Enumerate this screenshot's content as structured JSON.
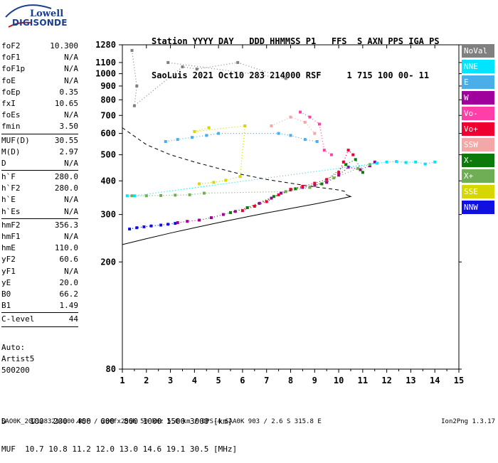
{
  "logo": {
    "line1": "Lowell",
    "line2": "DIGISONDE"
  },
  "header": {
    "labels": "Station YYYY DAY   DDD HHMMSS P1   FFS  S AXN PPS IGA PS",
    "values": "SaoLuis 2021 Oct10 283 214000 RSF     1 715 100 00- 11"
  },
  "params": {
    "group1": [
      {
        "name": "foF2",
        "value": "10.300"
      },
      {
        "name": "foF1",
        "value": "N/A"
      },
      {
        "name": "foF1p",
        "value": "N/A"
      },
      {
        "name": "foE",
        "value": "N/A"
      },
      {
        "name": "foEp",
        "value": "0.35"
      },
      {
        "name": "fxI",
        "value": "10.65"
      },
      {
        "name": "foEs",
        "value": "N/A"
      },
      {
        "name": "fmin",
        "value": "3.50"
      }
    ],
    "group2": [
      {
        "name": "MUF(D)",
        "value": "30.55"
      },
      {
        "name": "M(D)",
        "value": "2.97"
      },
      {
        "name": "D",
        "value": "N/A"
      }
    ],
    "group3": [
      {
        "name": "h`F",
        "value": "280.0"
      },
      {
        "name": "h`F2",
        "value": "280.0"
      },
      {
        "name": "h`E",
        "value": "N/A"
      },
      {
        "name": "h`Es",
        "value": "N/A"
      }
    ],
    "group4": [
      {
        "name": "hmF2",
        "value": "356.3"
      },
      {
        "name": "hmF1",
        "value": "N/A"
      },
      {
        "name": "hmE",
        "value": "110.0"
      },
      {
        "name": "yF2",
        "value": "60.6"
      },
      {
        "name": "yF1",
        "value": "N/A"
      },
      {
        "name": "yE",
        "value": "20.0"
      },
      {
        "name": "B0",
        "value": "66.2"
      },
      {
        "name": "B1",
        "value": "1.49"
      }
    ],
    "group5": [
      {
        "name": "C-level",
        "value": "44"
      }
    ]
  },
  "auto": {
    "line1": "Auto:",
    "line2": "Artist5",
    "line3": "500200"
  },
  "dtable": {
    "d_row": "D     100  200  400  600  800 1000 1500 3000 [km]",
    "muf_row": "MUF  10.7 10.8 11.2 12.0 13.0 14.6 19.1 30.5 [MHz]"
  },
  "footer": {
    "left": "SAO0K_2021283214000.RSF / 280fx256h 50 kHz 5.0 km / DPS-4 SAA0K 903 / 2.6 S 315.8 E",
    "right": "Ion2Png 1.3.17"
  },
  "legend": [
    {
      "label": "NoVal",
      "color": "#808080"
    },
    {
      "label": "NNE",
      "color": "#00e5ff"
    },
    {
      "label": "E",
      "color": "#4aaee8"
    },
    {
      "label": "W",
      "color": "#a0009c"
    },
    {
      "label": "Vo-",
      "color": "#ff3fa8"
    },
    {
      "label": "Vo+",
      "color": "#ee0030"
    },
    {
      "label": "SSW",
      "color": "#f4a7a7"
    },
    {
      "label": "X-",
      "color": "#0b7a0b"
    },
    {
      "label": "X+",
      "color": "#6fae55"
    },
    {
      "label": "SSE",
      "color": "#d6d600"
    },
    {
      "label": "NNW",
      "color": "#1010e0"
    }
  ],
  "chart_data": {
    "type": "scatter",
    "xlabel": "",
    "ylabel": "",
    "xlim": [
      1,
      15
    ],
    "ylim": [
      80,
      1280
    ],
    "x_ticks": [
      1,
      2,
      3,
      4,
      5,
      6,
      7,
      8,
      9,
      10,
      11,
      12,
      13,
      14,
      15
    ],
    "y_ticks": [
      80,
      200,
      300,
      400,
      500,
      600,
      700,
      800,
      900,
      1000,
      1100,
      1280
    ],
    "y_scale": "log",
    "series": [
      {
        "color": "#1010e0",
        "points": [
          [
            1.3,
            265
          ],
          [
            1.6,
            268
          ],
          [
            1.9,
            270
          ],
          [
            2.2,
            272
          ],
          [
            2.6,
            274
          ],
          [
            2.9,
            276
          ],
          [
            3.2,
            278
          ]
        ]
      },
      {
        "color": "#a0009c",
        "points": [
          [
            3.3,
            280
          ],
          [
            3.7,
            283
          ],
          [
            4.2,
            286
          ],
          [
            4.7,
            292
          ],
          [
            5.2,
            300
          ],
          [
            5.7,
            308
          ],
          [
            6.2,
            318
          ],
          [
            6.7,
            330
          ],
          [
            7.2,
            345
          ],
          [
            7.6,
            360
          ],
          [
            8.0,
            370
          ],
          [
            8.5,
            378
          ],
          [
            9.0,
            385
          ],
          [
            9.5,
            395
          ],
          [
            10.0,
            420
          ],
          [
            10.4,
            450
          ],
          [
            10.9,
            440
          ],
          [
            11.3,
            455
          ],
          [
            11.5,
            470
          ]
        ]
      },
      {
        "color": "#ee0030",
        "points": [
          [
            6.0,
            310
          ],
          [
            6.5,
            322
          ],
          [
            7.0,
            335
          ],
          [
            7.5,
            355
          ],
          [
            8.0,
            372
          ],
          [
            8.5,
            382
          ],
          [
            9.0,
            392
          ],
          [
            9.5,
            405
          ],
          [
            10.0,
            430
          ],
          [
            10.2,
            470
          ],
          [
            10.4,
            520
          ],
          [
            10.6,
            500
          ]
        ]
      },
      {
        "color": "#0b7a0b",
        "points": [
          [
            5.5,
            305
          ],
          [
            6.2,
            318
          ],
          [
            7.3,
            350
          ],
          [
            8.2,
            374
          ],
          [
            9.3,
            390
          ],
          [
            10.3,
            460
          ],
          [
            10.7,
            480
          ],
          [
            11.0,
            430
          ]
        ]
      },
      {
        "color": "#6fae55",
        "points": [
          [
            1.4,
            352
          ],
          [
            2.0,
            352
          ],
          [
            2.6,
            353
          ],
          [
            3.2,
            354
          ],
          [
            3.8,
            355
          ],
          [
            4.4,
            360
          ],
          [
            7.8,
            365
          ],
          [
            8.8,
            378
          ],
          [
            9.8,
            410
          ],
          [
            10.8,
            445
          ],
          [
            11.3,
            460
          ]
        ]
      },
      {
        "color": "#00e5ff",
        "points": [
          [
            1.2,
            352
          ],
          [
            1.5,
            352
          ],
          [
            11.6,
            465
          ],
          [
            12.0,
            470
          ],
          [
            12.4,
            472
          ],
          [
            12.8,
            468
          ],
          [
            13.2,
            470
          ],
          [
            13.6,
            462
          ],
          [
            14.0,
            470
          ]
        ]
      },
      {
        "color": "#4aaee8",
        "points": [
          [
            2.8,
            560
          ],
          [
            3.3,
            570
          ],
          [
            3.9,
            580
          ],
          [
            4.5,
            590
          ],
          [
            5.0,
            600
          ],
          [
            7.5,
            600
          ],
          [
            8.0,
            590
          ],
          [
            8.6,
            570
          ],
          [
            9.1,
            560
          ]
        ]
      },
      {
        "color": "#d6d600",
        "points": [
          [
            4.2,
            390
          ],
          [
            4.8,
            395
          ],
          [
            5.3,
            402
          ],
          [
            5.9,
            415
          ],
          [
            6.1,
            640
          ],
          [
            4.0,
            610
          ],
          [
            4.6,
            630
          ]
        ]
      },
      {
        "color": "#ff3fa8",
        "points": [
          [
            8.4,
            720
          ],
          [
            8.8,
            690
          ],
          [
            9.2,
            650
          ],
          [
            9.4,
            520
          ],
          [
            9.7,
            500
          ]
        ]
      },
      {
        "color": "#f4a7a7",
        "points": [
          [
            7.2,
            640
          ],
          [
            8.0,
            690
          ],
          [
            8.6,
            660
          ],
          [
            9.0,
            600
          ]
        ]
      },
      {
        "color": "#808080",
        "points": [
          [
            1.4,
            1220
          ],
          [
            1.6,
            900
          ],
          [
            1.5,
            760
          ],
          [
            3.5,
            1060
          ],
          [
            4.1,
            1040
          ],
          [
            5.8,
            1100
          ],
          [
            7.8,
            960
          ],
          [
            2.9,
            1100
          ]
        ]
      }
    ],
    "profile_curves": [
      {
        "style": "dashed",
        "points": [
          [
            1.0,
            630
          ],
          [
            2.0,
            545
          ],
          [
            3.0,
            500
          ],
          [
            4.0,
            470
          ],
          [
            5.0,
            445
          ],
          [
            6.0,
            422
          ],
          [
            7.0,
            405
          ],
          [
            8.0,
            392
          ],
          [
            9.0,
            380
          ],
          [
            10.0,
            370
          ],
          [
            10.3,
            365
          ]
        ]
      },
      {
        "style": "solid",
        "points": [
          [
            1.0,
            232
          ],
          [
            2.0,
            244
          ],
          [
            3.0,
            256
          ],
          [
            4.0,
            268
          ],
          [
            5.0,
            280
          ],
          [
            6.0,
            292
          ],
          [
            7.0,
            304
          ],
          [
            8.0,
            316
          ],
          [
            9.0,
            328
          ],
          [
            10.0,
            342
          ],
          [
            10.5,
            350
          ],
          [
            10.3,
            356
          ]
        ]
      }
    ]
  }
}
